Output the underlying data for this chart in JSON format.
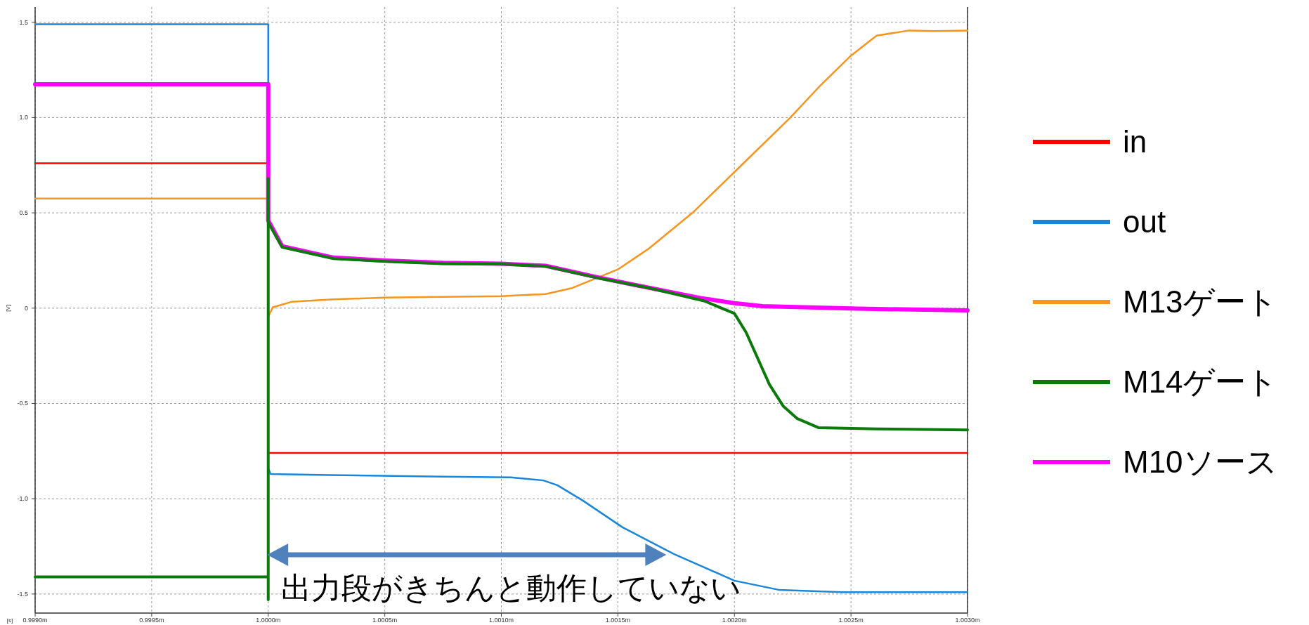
{
  "chart_data": {
    "type": "line",
    "xlabel": "[s]",
    "ylabel": "[V]",
    "xlim": [
      0.999,
      1.003
    ],
    "xticks": [
      {
        "value": 0.999,
        "label": "0.9990m"
      },
      {
        "value": 0.9995,
        "label": "0.9995m"
      },
      {
        "value": 1.0,
        "label": "1.0000m"
      },
      {
        "value": 1.0005,
        "label": "1.0005m"
      },
      {
        "value": 1.001,
        "label": "1.0010m"
      },
      {
        "value": 1.0015,
        "label": "1.0015m"
      },
      {
        "value": 1.002,
        "label": "1.0020m"
      },
      {
        "value": 1.0025,
        "label": "1.0025m"
      },
      {
        "value": 1.003,
        "label": "1.0030m"
      }
    ],
    "ylim": [
      -1.6,
      1.58
    ],
    "yticks": [
      {
        "value": -1.5,
        "label": "-1.5"
      },
      {
        "value": -1,
        "label": "-1.0"
      },
      {
        "value": -0.5,
        "label": "-0.5"
      },
      0,
      {
        "value": 0.5,
        "label": "0.5"
      },
      {
        "value": 1,
        "label": "1.0"
      },
      {
        "value": 1.5,
        "label": "1.5"
      }
    ],
    "grid": true,
    "legend": "right",
    "line_style": "solid",
    "marker": "none",
    "annotations": [
      "出力段がきちんと動作していない"
    ],
    "series": [
      {
        "name": "in",
        "color": "#ff0000",
        "x": [
          0.999,
          1.0,
          1.0,
          1.003
        ],
        "values": [
          0.76,
          0.76,
          -0.76,
          -0.76
        ]
      },
      {
        "name": "out",
        "color": "#1a86d9",
        "x": [
          0.999,
          1.0,
          1.0,
          1.0,
          1.00001,
          1.00026,
          1.00075,
          1.00104,
          1.00118,
          1.00124,
          1.00135,
          1.00152,
          1.00174,
          1.002,
          1.00219,
          1.00246,
          1.003
        ],
        "values": [
          1.49,
          1.49,
          -0.84,
          -0.84,
          -0.87,
          -0.876,
          -0.884,
          -0.888,
          -0.904,
          -0.929,
          -1.01,
          -1.15,
          -1.29,
          -1.43,
          -1.478,
          -1.49,
          -1.49
        ]
      },
      {
        "name": "M13ゲート",
        "color": "#f7941d",
        "x": [
          0.999,
          1.0,
          1.0,
          1.00002,
          1.0001,
          1.00028,
          1.0005,
          1.001,
          1.00119,
          1.0013,
          1.0015,
          1.00163,
          1.00182,
          1.002,
          1.00224,
          1.00237,
          1.0025,
          1.00261,
          1.00275,
          1.00286,
          1.003
        ],
        "values": [
          0.575,
          0.575,
          -0.045,
          0.005,
          0.033,
          0.046,
          0.055,
          0.063,
          0.074,
          0.104,
          0.203,
          0.31,
          0.5,
          0.714,
          1.0,
          1.17,
          1.325,
          1.43,
          1.457,
          1.454,
          1.457
        ]
      },
      {
        "name": "M14ゲート",
        "color": "#0a7a0a",
        "x": [
          0.999,
          1.0,
          1.0,
          1.0,
          1.0,
          1.00006,
          1.00028,
          1.0005,
          1.00075,
          1.001,
          1.00119,
          1.00142,
          1.00164,
          1.00187,
          1.002,
          1.00205,
          1.00215,
          1.00221,
          1.00227,
          1.00236,
          1.00261,
          1.003
        ],
        "values": [
          -1.41,
          -1.41,
          -1.53,
          0.68,
          0.45,
          0.32,
          0.26,
          0.245,
          0.233,
          0.231,
          0.22,
          0.157,
          0.104,
          0.038,
          -0.028,
          -0.127,
          -0.4,
          -0.515,
          -0.58,
          -0.627,
          -0.634,
          -0.639
        ]
      },
      {
        "name": "M10ソース",
        "color": "#ff00ff",
        "x": [
          0.999,
          1.0,
          1.0,
          1.0,
          1.00006,
          1.00028,
          1.0005,
          1.00075,
          1.001,
          1.00119,
          1.00142,
          1.00158,
          1.00185,
          1.002,
          1.00212,
          1.00253,
          1.003
        ],
        "values": [
          1.175,
          1.175,
          0.68,
          0.46,
          0.325,
          0.265,
          0.25,
          0.238,
          0.233,
          0.222,
          0.16,
          0.12,
          0.054,
          0.026,
          0.01,
          -0.003,
          -0.012
        ]
      }
    ]
  }
}
